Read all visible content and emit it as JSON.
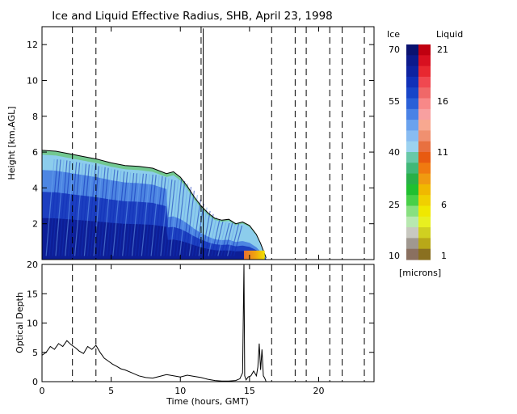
{
  "chart_data": [
    {
      "type": "heatmap",
      "title": "Ice and Liquid Effective Radius, SHB, April 23, 1998",
      "xlabel": "",
      "ylabel": "Height [km,AGL]",
      "xlim": [
        0,
        24
      ],
      "ylim": [
        0,
        13
      ],
      "yticks": [
        2,
        4,
        6,
        8,
        10,
        12
      ],
      "cloud_top_km": [
        [
          0.0,
          6.1
        ],
        [
          1.0,
          6.05
        ],
        [
          2.0,
          5.9
        ],
        [
          3.0,
          5.75
        ],
        [
          4.0,
          5.6
        ],
        [
          5.0,
          5.4
        ],
        [
          6.0,
          5.25
        ],
        [
          7.0,
          5.2
        ],
        [
          8.0,
          5.1
        ],
        [
          9.0,
          4.8
        ],
        [
          9.5,
          4.9
        ],
        [
          10.0,
          4.6
        ],
        [
          10.5,
          4.1
        ],
        [
          11.0,
          3.5
        ],
        [
          11.5,
          3.0
        ],
        [
          12.0,
          2.6
        ],
        [
          12.5,
          2.3
        ],
        [
          13.0,
          2.2
        ],
        [
          13.5,
          2.25
        ],
        [
          14.0,
          2.0
        ],
        [
          14.5,
          2.1
        ],
        [
          15.0,
          1.9
        ],
        [
          15.5,
          1.4
        ],
        [
          15.8,
          0.9
        ],
        [
          16.0,
          0.5
        ],
        [
          16.2,
          0.1
        ]
      ],
      "liquid_layer_hours": [
        14.6,
        16.1
      ],
      "vertical_lines_hours": [
        2.2,
        3.9,
        11.5,
        16.6,
        18.3,
        19.1,
        20.8,
        21.7,
        23.3
      ],
      "colorbar": {
        "ice_label": "Ice",
        "liquid_label": "Liquid",
        "units": "[microns]",
        "ice_ticks": [
          "70",
          "55",
          "40",
          "25",
          "10"
        ],
        "liquid_ticks": [
          "21",
          "16",
          "11",
          "6",
          "1"
        ],
        "ice_colors": [
          "#0a1270",
          "#0c1a8c",
          "#0e22a0",
          "#1030b8",
          "#1845c8",
          "#2a60d8",
          "#4a82e6",
          "#6aa2ee",
          "#88bcf2",
          "#9cd2f0",
          "#68c8a8",
          "#40b878",
          "#28b048",
          "#20c030",
          "#48d048",
          "#88e080",
          "#b8e8b0",
          "#c8c8c0",
          "#a09890",
          "#8a7060"
        ],
        "liquid_colors": [
          "#c00010",
          "#d81020",
          "#e82830",
          "#f04850",
          "#f06868",
          "#f88888",
          "#f8a0a0",
          "#f8a890",
          "#f09070",
          "#e87040",
          "#e85a10",
          "#f07a10",
          "#f09a10",
          "#f0b800",
          "#f0d000",
          "#f0e800",
          "#e8f020",
          "#d0d020",
          "#b8a818",
          "#8a7020"
        ]
      }
    },
    {
      "type": "line",
      "xlabel": "Time (hours, GMT)",
      "ylabel": "Optical Depth",
      "xlim": [
        0,
        24
      ],
      "ylim": [
        0,
        20
      ],
      "xticks": [
        0,
        5,
        10,
        15,
        20
      ],
      "yticks": [
        0,
        5,
        10,
        15,
        20
      ],
      "vertical_lines_hours": [
        2.2,
        3.9,
        16.6,
        18.3,
        19.1,
        20.8,
        21.7,
        23.3
      ],
      "x": [
        0.0,
        0.3,
        0.6,
        0.9,
        1.2,
        1.5,
        1.8,
        2.1,
        2.4,
        2.7,
        3.0,
        3.3,
        3.6,
        3.9,
        4.2,
        4.5,
        4.8,
        5.1,
        5.4,
        5.7,
        6.0,
        6.5,
        7.0,
        7.5,
        8.0,
        8.5,
        9.0,
        9.5,
        10.0,
        10.5,
        11.0,
        11.5,
        12.0,
        12.5,
        13.0,
        13.5,
        14.0,
        14.3,
        14.5,
        14.6,
        14.65,
        14.75,
        14.9,
        15.1,
        15.3,
        15.5,
        15.6,
        15.7,
        15.8,
        15.9,
        16.0,
        16.1,
        16.2
      ],
      "y": [
        4.5,
        5.0,
        6.0,
        5.5,
        6.5,
        6.0,
        7.0,
        6.3,
        5.8,
        5.2,
        4.8,
        6.0,
        5.5,
        6.2,
        5.0,
        4.0,
        3.5,
        3.0,
        2.6,
        2.2,
        2.0,
        1.5,
        1.0,
        0.7,
        0.6,
        0.9,
        1.2,
        1.0,
        0.8,
        1.1,
        0.9,
        0.7,
        0.4,
        0.2,
        0.1,
        0.1,
        0.2,
        0.5,
        1.5,
        20.0,
        1.0,
        0.3,
        0.8,
        1.0,
        1.8,
        1.0,
        2.5,
        6.5,
        2.0,
        5.5,
        1.0,
        0.6,
        0.0
      ]
    }
  ]
}
